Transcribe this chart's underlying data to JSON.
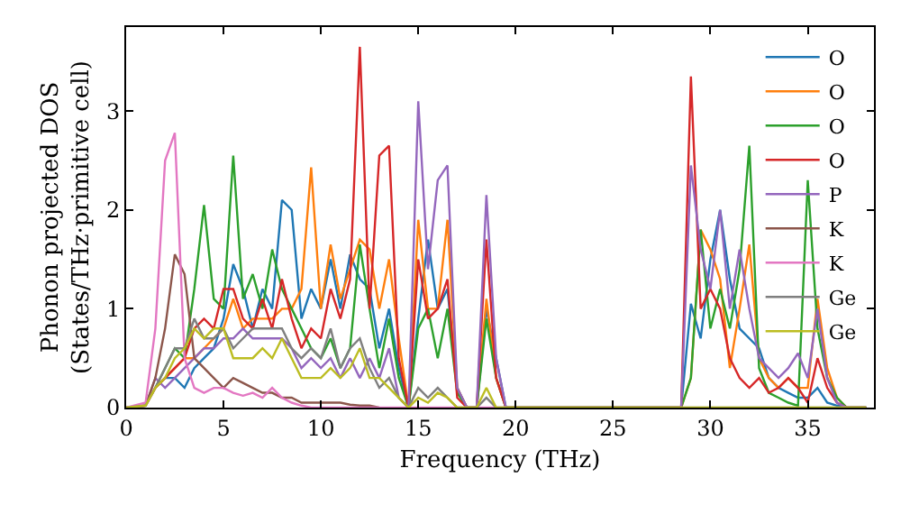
{
  "chart_data": {
    "type": "line",
    "xlabel": "Frequency (THz)",
    "ylabel": "Phonon projected DOS\n(States/THz·primitive cell)",
    "x": [
      0,
      1,
      1.5,
      2,
      2.5,
      3,
      3.5,
      4,
      4.5,
      5,
      5.5,
      6,
      6.5,
      7,
      7.5,
      8,
      8.5,
      9,
      9.5,
      10,
      10.5,
      11,
      11.5,
      12,
      12.5,
      13,
      13.5,
      14,
      14.5,
      15,
      15.5,
      16,
      16.5,
      17,
      17.5,
      18,
      18.5,
      19,
      19.5,
      20,
      21,
      28,
      28.5,
      29,
      29.5,
      30,
      30.5,
      31,
      31.5,
      32,
      32.5,
      33,
      33.5,
      34,
      34.5,
      35,
      35.5,
      36,
      36.5,
      37,
      38
    ],
    "series": [
      {
        "name": "O",
        "color": "#1f77b4",
        "values": [
          null,
          null,
          0.2,
          0.3,
          0.3,
          0.2,
          0.4,
          0.5,
          0.6,
          0.9,
          1.45,
          1.2,
          0.8,
          1.2,
          1.0,
          2.1,
          2.0,
          0.9,
          1.2,
          1.0,
          1.5,
          1.0,
          1.55,
          1.3,
          1.2,
          0.6,
          1.0,
          0.4,
          0,
          0.9,
          1.7,
          1.0,
          1.2,
          0.2,
          0,
          0,
          1.0,
          0.5,
          0,
          0,
          0,
          0,
          0,
          1.05,
          0.7,
          1.5,
          2.0,
          1.3,
          0.8,
          0.7,
          0.6,
          0.3,
          0.2,
          0.15,
          0.1,
          0.1,
          0.2,
          0.05,
          0.02,
          0,
          0
        ]
      },
      {
        "name": "O",
        "color": "#ff7f0e",
        "values": [
          null,
          null,
          0.2,
          0.3,
          0.4,
          0.5,
          0.5,
          0.6,
          0.7,
          0.8,
          1.1,
          0.8,
          0.9,
          0.9,
          0.9,
          1.0,
          1.0,
          1.2,
          2.43,
          1.0,
          1.65,
          1.1,
          1.4,
          1.7,
          1.6,
          1.0,
          1.5,
          0.7,
          0,
          1.9,
          1.0,
          1.0,
          1.9,
          0.2,
          0,
          0,
          1.1,
          0.3,
          0,
          0,
          0,
          0,
          0,
          0.3,
          1.8,
          1.6,
          1.3,
          0.4,
          1.0,
          1.65,
          0.5,
          0.3,
          0.2,
          0.3,
          0.2,
          0.2,
          1.1,
          0.4,
          0.1,
          0,
          0
        ]
      },
      {
        "name": "O",
        "color": "#2ca02c",
        "values": [
          null,
          null,
          0.2,
          0.4,
          0.6,
          0.5,
          1.2,
          2.05,
          1.1,
          1.0,
          2.55,
          1.1,
          1.35,
          1.0,
          1.6,
          1.2,
          1.0,
          0.8,
          0.6,
          0.5,
          0.7,
          0.4,
          0.6,
          1.65,
          1.0,
          0.4,
          0.9,
          0.3,
          0,
          0.8,
          1.0,
          0.5,
          1.0,
          0.15,
          0,
          0,
          0.9,
          0.3,
          0,
          0,
          0,
          0,
          0,
          0.3,
          1.8,
          0.8,
          1.2,
          0.8,
          1.4,
          2.65,
          0.4,
          0.15,
          0.1,
          0.05,
          0.02,
          2.3,
          0.8,
          0.3,
          0.1,
          0,
          0
        ]
      },
      {
        "name": "O",
        "color": "#d62728",
        "values": [
          0,
          0.02,
          0.2,
          0.3,
          0.4,
          0.5,
          0.8,
          0.9,
          0.8,
          1.2,
          1.2,
          0.9,
          0.8,
          1.1,
          0.8,
          1.3,
          0.9,
          0.6,
          0.8,
          0.7,
          1.2,
          0.9,
          1.3,
          3.65,
          1.0,
          2.55,
          2.65,
          0.5,
          0,
          1.5,
          0.9,
          1.0,
          1.3,
          0.1,
          0,
          0,
          1.7,
          0.3,
          0,
          0,
          0,
          0,
          0,
          3.35,
          1.0,
          1.2,
          1.0,
          0.5,
          0.3,
          0.2,
          0.3,
          0.15,
          0.2,
          0.3,
          0.2,
          0.05,
          0.5,
          0.2,
          0.05,
          0,
          0
        ]
      },
      {
        "name": "P",
        "color": "#9467bd",
        "values": [
          0,
          0.02,
          0.3,
          0.2,
          0.3,
          0.4,
          0.5,
          0.6,
          0.6,
          0.7,
          0.7,
          0.8,
          0.7,
          0.7,
          0.7,
          0.7,
          0.6,
          0.4,
          0.5,
          0.4,
          0.5,
          0.3,
          0.5,
          0.3,
          0.5,
          0.3,
          0.6,
          0.1,
          0,
          3.1,
          1.4,
          2.3,
          2.45,
          0.2,
          0,
          0,
          2.15,
          0.5,
          0,
          0,
          0,
          0,
          0,
          2.45,
          1.6,
          1.2,
          2.0,
          1.0,
          1.6,
          1.0,
          0.5,
          0.4,
          0.3,
          0.4,
          0.55,
          0.3,
          1.0,
          0.3,
          0.05,
          0,
          0
        ]
      },
      {
        "name": "K",
        "color": "#8c564b",
        "values": [
          0,
          0.02,
          0.3,
          0.8,
          1.55,
          1.35,
          0.5,
          0.4,
          0.3,
          0.2,
          0.3,
          0.25,
          0.2,
          0.15,
          0.15,
          0.1,
          0.1,
          0.05,
          0.05,
          0.05,
          0.05,
          0.05,
          0.03,
          0.02,
          0.02,
          0,
          null,
          null,
          null,
          null,
          null,
          null,
          null,
          null,
          null,
          null,
          null,
          null,
          null,
          null,
          null,
          null,
          null,
          null,
          null,
          null,
          null,
          null,
          null,
          null,
          null,
          null,
          null,
          null,
          null,
          null,
          null,
          null,
          null,
          null,
          null
        ]
      },
      {
        "name": "K",
        "color": "#e377c2",
        "values": [
          0,
          0.05,
          0.8,
          2.5,
          2.78,
          0.5,
          0.2,
          0.15,
          0.2,
          0.2,
          0.15,
          0.12,
          0.15,
          0.1,
          0.2,
          0.1,
          0.05,
          0.02,
          0,
          0,
          0,
          0,
          0,
          0,
          0,
          0,
          0,
          0,
          0,
          0,
          0,
          0,
          0,
          0,
          0,
          0,
          0,
          0,
          0,
          null,
          null,
          null,
          null,
          null,
          null,
          null,
          null,
          null,
          null,
          null,
          null,
          null,
          null,
          null,
          null,
          null,
          null,
          null,
          null,
          null,
          null
        ]
      },
      {
        "name": "Ge",
        "color": "#7f7f7f",
        "values": [
          0,
          0.02,
          0.2,
          0.4,
          0.6,
          0.6,
          0.9,
          0.7,
          0.7,
          0.8,
          0.6,
          0.7,
          0.8,
          0.8,
          0.8,
          0.8,
          0.6,
          0.5,
          0.6,
          0.5,
          0.8,
          0.4,
          0.6,
          0.7,
          0.4,
          0.2,
          0.3,
          0.1,
          0,
          0.2,
          0.1,
          0.2,
          0.1,
          0,
          0,
          0,
          0.1,
          0,
          0,
          0,
          0,
          0,
          0,
          0,
          0,
          0,
          0,
          0,
          0,
          0,
          0,
          0,
          0,
          0,
          0,
          0,
          0,
          0,
          0,
          0,
          0
        ]
      },
      {
        "name": "Ge",
        "color": "#bcbd22",
        "values": [
          0,
          0.02,
          0.2,
          0.3,
          0.5,
          0.6,
          0.8,
          0.7,
          0.8,
          0.8,
          0.5,
          0.5,
          0.5,
          0.6,
          0.5,
          0.7,
          0.5,
          0.3,
          0.3,
          0.3,
          0.4,
          0.3,
          0.4,
          0.6,
          0.3,
          0.3,
          0.2,
          0.1,
          0,
          0.1,
          0.05,
          0.15,
          0.1,
          0,
          0,
          0,
          0.2,
          0,
          0,
          0,
          0,
          0,
          0,
          0,
          0,
          0,
          0,
          0,
          0,
          0,
          0,
          0,
          0,
          0,
          0,
          0,
          0,
          0,
          0,
          0,
          0
        ]
      }
    ],
    "xlim": [
      0,
      38.4
    ],
    "ylim": [
      0,
      3.85
    ],
    "xticks": [
      0,
      5,
      10,
      15,
      20,
      25,
      30,
      35
    ],
    "yticks": [
      0,
      1,
      2,
      3
    ],
    "grid": false,
    "legend": "top right",
    "marker": "none",
    "line_style": "solid"
  }
}
